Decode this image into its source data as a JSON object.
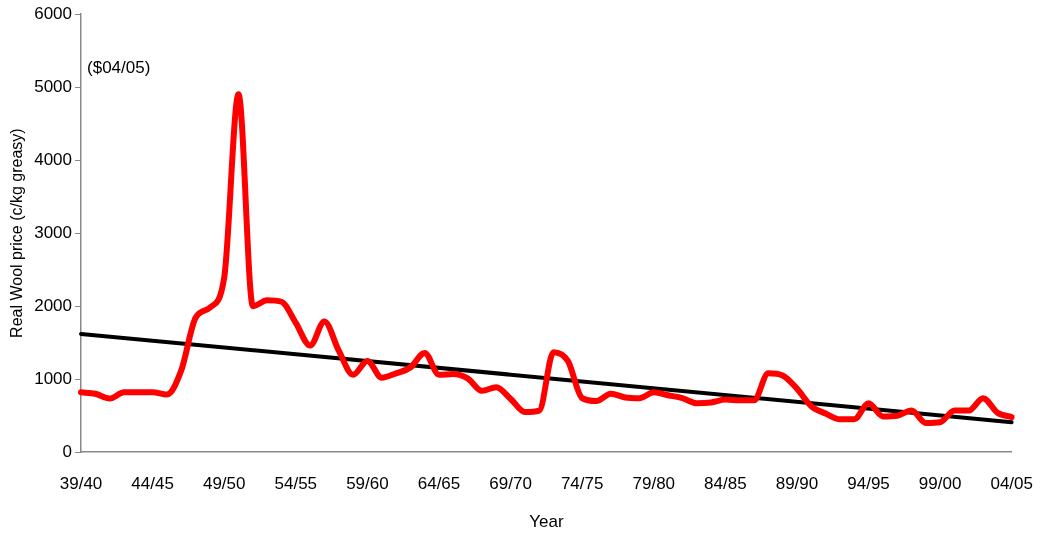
{
  "chart_data": {
    "type": "line",
    "xlabel": "Year",
    "ylabel": "Real Wool price (c/kg greasy)",
    "annotations": [
      "($04/05)"
    ],
    "categories": [
      "39/40",
      null,
      null,
      null,
      null,
      "44/45",
      null,
      null,
      null,
      null,
      "49/50",
      null,
      null,
      null,
      null,
      "54/55",
      null,
      null,
      null,
      null,
      "59/60",
      null,
      null,
      null,
      null,
      "64/65",
      null,
      null,
      null,
      null,
      "69/70",
      null,
      null,
      null,
      null,
      "74/75",
      null,
      null,
      null,
      null,
      "79/80",
      null,
      null,
      null,
      null,
      "84/85",
      null,
      null,
      null,
      null,
      "89/90",
      null,
      null,
      null,
      null,
      "94/95",
      null,
      null,
      null,
      null,
      "99/00",
      null,
      null,
      null,
      null,
      "04/05"
    ],
    "series": [
      {
        "color": "#ff0000",
        "values": [
          820,
          800,
          735,
          820,
          820,
          820,
          790,
          1120,
          1840,
          1980,
          2390,
          4900,
          2000,
          2080,
          2060,
          1770,
          1460,
          1790,
          1390,
          1060,
          1250,
          1020,
          1080,
          1160,
          1360,
          1060,
          1070,
          1010,
          840,
          890,
          730,
          550,
          570,
          1370,
          1250,
          740,
          700,
          800,
          750,
          740,
          820,
          780,
          740,
          670,
          680,
          720,
          710,
          710,
          1080,
          1050,
          870,
          630,
          530,
          450,
          450,
          670,
          490,
          500,
          570,
          400,
          410,
          570,
          570,
          740,
          540,
          480
        ]
      },
      {
        "type": "line",
        "color": "#000000",
        "x": [
          "39/40",
          "04/05"
        ],
        "values": [
          1620,
          410
        ]
      }
    ],
    "ylim": [
      0,
      6000
    ],
    "yticks": [
      0,
      1000,
      2000,
      3000,
      4000,
      5000,
      6000
    ],
    "grid": false,
    "legend": false,
    "marker": "none",
    "line_style": "solid"
  }
}
